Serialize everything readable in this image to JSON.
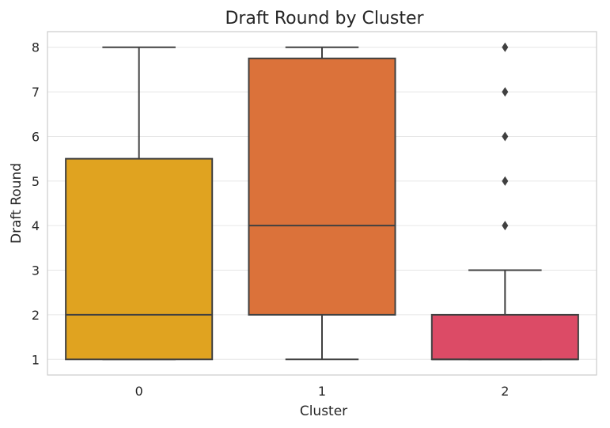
{
  "chart_data": {
    "type": "box",
    "title": "Draft Round by Cluster",
    "xlabel": "Cluster",
    "ylabel": "Draft Round",
    "categories": [
      "0",
      "1",
      "2"
    ],
    "ylim": [
      0.65,
      8.35
    ],
    "yticks": [
      1,
      2,
      3,
      4,
      5,
      6,
      7,
      8
    ],
    "grid": true,
    "boxes": [
      {
        "category": "0",
        "whisker_low": 1,
        "q1": 1,
        "median": 2,
        "q3": 5.5,
        "whisker_high": 8,
        "outliers": [],
        "color": "#e0a320"
      },
      {
        "category": "1",
        "whisker_low": 1,
        "q1": 2,
        "median": 4,
        "q3": 7.75,
        "whisker_high": 8,
        "outliers": [],
        "color": "#db723a"
      },
      {
        "category": "2",
        "whisker_low": 1,
        "q1": 1,
        "median": 1,
        "q3": 2,
        "whisker_high": 3,
        "outliers": [
          4,
          5,
          6,
          7,
          8
        ],
        "color": "#dc4b66"
      }
    ]
  }
}
